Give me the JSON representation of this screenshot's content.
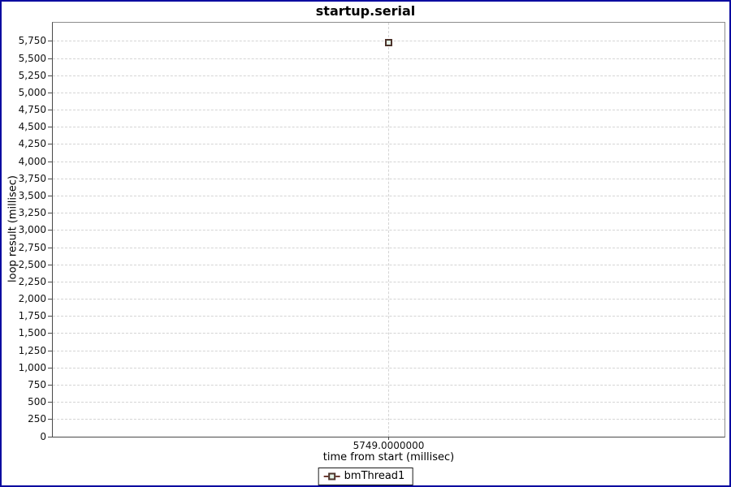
{
  "title": "startup.serial",
  "chart_data": {
    "type": "scatter",
    "title": "startup.serial",
    "xlabel": "time from start (millisec)",
    "ylabel": "loop result (millisec)",
    "x_tick_labels": [
      "5749.0000000"
    ],
    "y_tick_labels": [
      "0",
      "250",
      "500",
      "750",
      "1,000",
      "1,250",
      "1,500",
      "1,750",
      "2,000",
      "2,250",
      "2,500",
      "2,750",
      "3,000",
      "3,250",
      "3,500",
      "3,750",
      "4,000",
      "4,250",
      "4,500",
      "4,750",
      "5,000",
      "5,250",
      "5,500",
      "5,750"
    ],
    "ylim": [
      0,
      6020
    ],
    "grid": true,
    "legend_position": "bottom",
    "series": [
      {
        "name": "bmThread1",
        "marker": "square",
        "marker_fill": "#e4f3e8",
        "marker_border": "#4c332b",
        "line_color": "#6e3c33",
        "points": [
          {
            "x": 5749.0,
            "y": 5725
          }
        ]
      }
    ]
  },
  "legend": {
    "items": [
      {
        "label": "bmThread1",
        "marker_icon": "square-with-line"
      }
    ]
  },
  "colors": {
    "frame_border": "#0a0aa0",
    "plot_border": "#8d8d8d",
    "axis": "#4a4a4a",
    "gridline": "#d4d4d4",
    "marker_fill": "#e4f3e8",
    "marker_border": "#4c332b",
    "legend_line": "#6e3c33"
  }
}
